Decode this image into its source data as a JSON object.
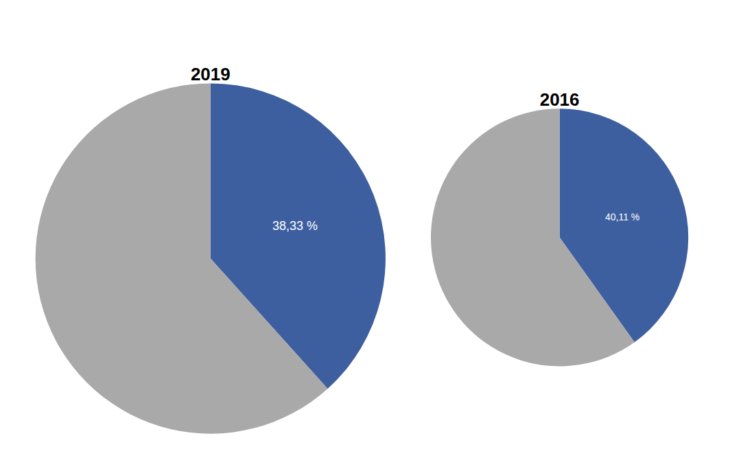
{
  "chart_data": [
    {
      "type": "pie",
      "title": "2019",
      "values": [
        38.33,
        61.67
      ],
      "colors": [
        "#3D5FA0",
        "#A9A9A9"
      ],
      "value_labels": [
        "38,33 %",
        null
      ]
    },
    {
      "type": "pie",
      "title": "2016",
      "values": [
        40.11,
        59.89
      ],
      "colors": [
        "#3D5FA0",
        "#A9A9A9"
      ],
      "value_labels": [
        "40,11 %",
        null
      ]
    }
  ]
}
